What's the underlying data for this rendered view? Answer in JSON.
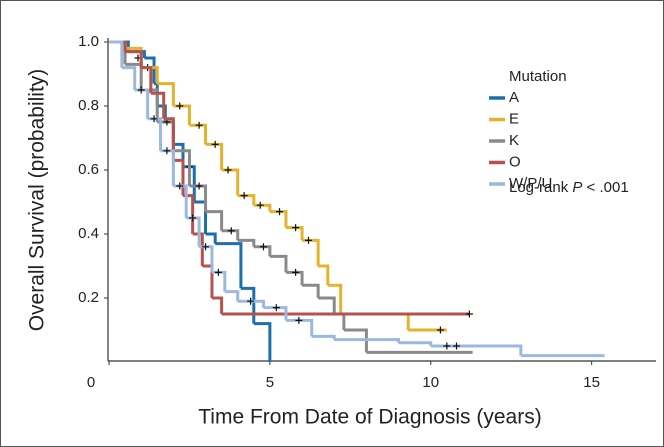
{
  "chart_data": {
    "type": "km",
    "ylabel": "Overall Survival (probability)",
    "xlabel": "Time From Date of Diagnosis (years)",
    "xlim": [
      0,
      17
    ],
    "xticks": [
      0,
      5,
      10,
      15
    ],
    "ylim": [
      0,
      1
    ],
    "yticks": [
      0.2,
      {
        "value": 0.4,
        "label": "0.4"
      },
      0.6,
      0.8,
      {
        "value": 1.0,
        "label": "1.0"
      }
    ],
    "legend_title": "Mutation",
    "legend_position": "upper right",
    "annotation": {
      "prefix": "Log-rank ",
      "italic": "P",
      "suffix": " < .001"
    },
    "series": [
      {
        "name": "A",
        "color": "#1b6fad",
        "x": [
          0,
          0.6,
          1.1,
          1.4,
          1.5,
          1.75,
          2.0,
          2.3,
          2.65,
          3.0,
          3.3,
          4.1,
          4.5,
          5.0
        ],
        "values": [
          1.0,
          0.97,
          0.95,
          0.87,
          0.8,
          0.75,
          0.68,
          0.61,
          0.5,
          0.4,
          0.37,
          0.23,
          0.12,
          0
        ],
        "censor_x": [
          0.9,
          2.5
        ],
        "censor_values": [
          0.95,
          0.61
        ]
      },
      {
        "name": "E",
        "color": "#e5b22c",
        "x": [
          0,
          0.5,
          1.0,
          1.5,
          2.0,
          2.5,
          3.0,
          3.5,
          4.0,
          4.5,
          5.0,
          5.5,
          6.0,
          6.5,
          6.8,
          7.2,
          9.3,
          10.5
        ],
        "values": [
          1.0,
          0.98,
          0.92,
          0.87,
          0.8,
          0.74,
          0.68,
          0.6,
          0.52,
          0.49,
          0.47,
          0.42,
          0.38,
          0.3,
          0.24,
          0.15,
          0.1,
          0.1
        ],
        "censor_x": [
          1.2,
          2.2,
          2.8,
          3.3,
          3.7,
          4.2,
          4.7,
          5.3,
          5.8,
          6.2,
          10.3
        ],
        "censor_values": [
          0.92,
          0.8,
          0.74,
          0.68,
          0.6,
          0.52,
          0.49,
          0.47,
          0.42,
          0.38,
          0.1
        ]
      },
      {
        "name": "K",
        "color": "#8a8a8a",
        "x": [
          0,
          0.5,
          1.0,
          1.5,
          2.0,
          2.5,
          3.0,
          3.5,
          4.0,
          4.5,
          5.0,
          5.5,
          6.0,
          6.5,
          7.0,
          7.3,
          8.0,
          11.3
        ],
        "values": [
          1.0,
          0.93,
          0.85,
          0.75,
          0.66,
          0.55,
          0.47,
          0.41,
          0.38,
          0.36,
          0.33,
          0.28,
          0.24,
          0.2,
          0.15,
          0.1,
          0.03,
          0.03
        ],
        "censor_x": [
          1.8,
          2.8,
          3.8,
          4.8,
          5.8
        ],
        "censor_values": [
          0.75,
          0.55,
          0.41,
          0.36,
          0.28
        ]
      },
      {
        "name": "O",
        "color": "#b5524e",
        "x": [
          0,
          0.5,
          1.0,
          1.3,
          1.7,
          2.0,
          2.3,
          2.6,
          2.9,
          3.2,
          3.5,
          11.2
        ],
        "values": [
          1.0,
          0.97,
          0.92,
          0.84,
          0.76,
          0.63,
          0.52,
          0.4,
          0.3,
          0.2,
          0.15,
          0.15
        ],
        "censor_x": [
          11.2
        ],
        "censor_values": [
          0.15
        ]
      },
      {
        "name": "W/P/U",
        "color": "#9bb9df",
        "x": [
          0,
          0.4,
          0.8,
          1.2,
          1.6,
          2.0,
          2.4,
          2.8,
          3.2,
          3.6,
          4.0,
          4.8,
          5.5,
          6.3,
          7.0,
          9.0,
          10.0,
          12.8,
          15.4
        ],
        "values": [
          1.0,
          0.92,
          0.85,
          0.76,
          0.66,
          0.55,
          0.45,
          0.36,
          0.28,
          0.22,
          0.19,
          0.17,
          0.13,
          0.08,
          0.07,
          0.06,
          0.05,
          0.02,
          0.02
        ],
        "censor_x": [
          1.0,
          1.4,
          1.8,
          2.2,
          2.6,
          3.0,
          3.4,
          4.4,
          5.2,
          5.9,
          10.5,
          10.8
        ],
        "censor_values": [
          0.85,
          0.76,
          0.66,
          0.55,
          0.45,
          0.36,
          0.28,
          0.19,
          0.17,
          0.13,
          0.05,
          0.05
        ]
      }
    ]
  }
}
